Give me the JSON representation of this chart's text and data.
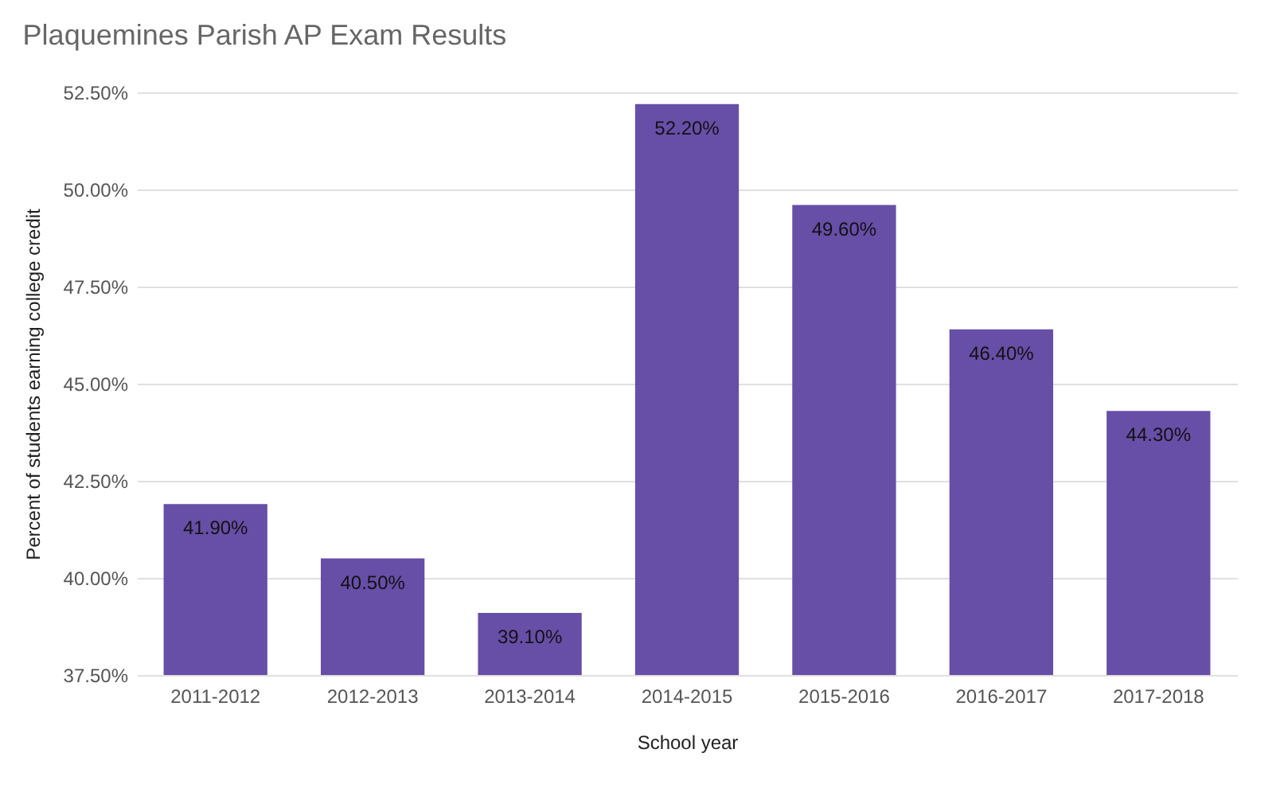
{
  "chart_data": {
    "type": "bar",
    "title": "Plaquemines Parish AP Exam Results",
    "xlabel": "School year",
    "ylabel": "Percent of students earning college credit",
    "categories": [
      "2011-2012",
      "2012-2013",
      "2013-2014",
      "2014-2015",
      "2015-2016",
      "2016-2017",
      "2017-2018"
    ],
    "values": [
      41.9,
      40.5,
      39.1,
      52.2,
      49.6,
      46.4,
      44.3
    ],
    "value_labels": [
      "41.90%",
      "40.50%",
      "39.10%",
      "52.20%",
      "49.60%",
      "46.40%",
      "44.30%"
    ],
    "color": "#674ea7",
    "ylim": [
      37.5,
      52.5
    ],
    "yticks": [
      {
        "value": 37.5,
        "label": "37.50%"
      },
      {
        "value": 40,
        "label": "40.00%"
      },
      {
        "value": 42.5,
        "label": "42.50%"
      },
      {
        "value": 45,
        "label": "45.00%"
      },
      {
        "value": 47.5,
        "label": "47.50%"
      },
      {
        "value": 50,
        "label": "50.00%"
      },
      {
        "value": 52.5,
        "label": "52.50%"
      }
    ],
    "grid": "y"
  }
}
